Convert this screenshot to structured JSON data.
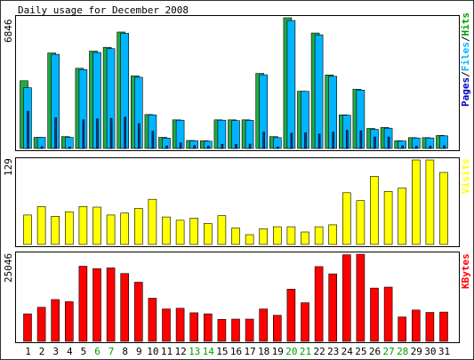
{
  "chart_data": [
    {
      "type": "bar",
      "title": "Daily usage for December 2008",
      "ylabel_max": "6846",
      "ylim": [
        0,
        6846
      ],
      "categories": [
        "1",
        "2",
        "3",
        "4",
        "5",
        "6",
        "7",
        "8",
        "9",
        "10",
        "11",
        "12",
        "13",
        "14",
        "15",
        "16",
        "17",
        "18",
        "19",
        "20",
        "21",
        "22",
        "23",
        "24",
        "25",
        "26",
        "27",
        "28",
        "29",
        "30",
        "31"
      ],
      "weekend_days": [
        "6",
        "7",
        "13",
        "14",
        "20",
        "21",
        "27",
        "28"
      ],
      "legend": [
        {
          "name": "Pages",
          "color": "#0000c0"
        },
        {
          "name": "Files",
          "color": "#00b4ff"
        },
        {
          "name": "Hits",
          "color": "#00a000"
        }
      ],
      "separator": "/",
      "series": [
        {
          "name": "Hits",
          "color": "#22aa44",
          "values": [
            3550,
            580,
            5000,
            620,
            4200,
            5100,
            5300,
            6100,
            3800,
            1780,
            580,
            1500,
            420,
            400,
            1500,
            1500,
            1500,
            3930,
            620,
            6846,
            3000,
            6050,
            3850,
            1760,
            3100,
            1050,
            1100,
            400,
            570,
            570,
            680
          ]
        },
        {
          "name": "Files",
          "color": "#00b4ff",
          "values": [
            3180,
            580,
            4930,
            580,
            4130,
            5030,
            5230,
            6030,
            3730,
            1760,
            540,
            1480,
            400,
            380,
            1480,
            1460,
            1470,
            3860,
            570,
            6700,
            2990,
            5950,
            3780,
            1740,
            3060,
            1000,
            1060,
            390,
            550,
            550,
            660
          ]
        },
        {
          "name": "Pages",
          "color": "#1a3a8a",
          "values": [
            1950,
            100,
            1600,
            80,
            1500,
            1550,
            1580,
            1640,
            1300,
            900,
            130,
            290,
            150,
            120,
            220,
            210,
            230,
            850,
            80,
            800,
            820,
            750,
            850,
            950,
            920,
            600,
            600,
            140,
            120,
            120,
            150
          ]
        }
      ]
    },
    {
      "type": "bar",
      "ylabel_max": "129",
      "ylim": [
        0,
        129
      ],
      "legend": [
        {
          "name": "Visits",
          "color": "#ffff00"
        }
      ],
      "series": [
        {
          "name": "Visits",
          "color": "#ffff00",
          "values": [
            45,
            58,
            43,
            50,
            58,
            57,
            45,
            48,
            55,
            69,
            42,
            37,
            40,
            32,
            44,
            25,
            15,
            24,
            27,
            27,
            19,
            27,
            30,
            79,
            67,
            104,
            81,
            86,
            129,
            129,
            110
          ]
        }
      ]
    },
    {
      "type": "bar",
      "ylabel_max": "25046",
      "ylim": [
        0,
        25046
      ],
      "legend": [
        {
          "name": "KBytes",
          "color": "#ff0000"
        }
      ],
      "series": [
        {
          "name": "KBytes",
          "color": "#ff0000",
          "values": [
            7900,
            9800,
            12000,
            11400,
            21600,
            20900,
            21100,
            19500,
            17000,
            12400,
            9300,
            9500,
            8200,
            7900,
            6300,
            6400,
            6400,
            9300,
            7500,
            15000,
            11100,
            21500,
            19400,
            24900,
            25046,
            15300,
            15600,
            7000,
            9000,
            8300,
            8400
          ]
        }
      ]
    }
  ]
}
